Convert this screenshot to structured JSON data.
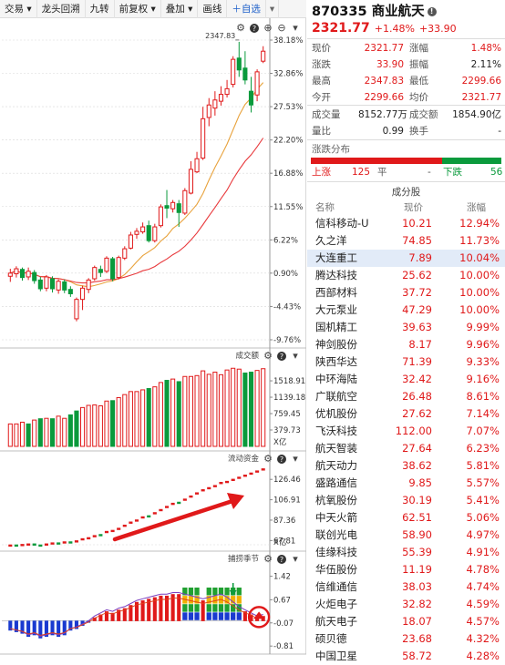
{
  "toolbar": {
    "items": [
      "交易",
      "龙头回溯",
      "九转",
      "前复权",
      "叠加",
      "画线"
    ],
    "add_label": "自选"
  },
  "stock": {
    "code": "870335",
    "name": "商业航天",
    "price": "2321.77",
    "change_pct": "+1.48%",
    "change": "+33.90"
  },
  "quote": {
    "rows": [
      {
        "l1": "现价",
        "v1": "2321.77",
        "c1": "red",
        "l2": "涨幅",
        "v2": "1.48%",
        "c2": "red"
      },
      {
        "l1": "涨跌",
        "v1": "33.90",
        "c1": "red",
        "l2": "振幅",
        "v2": "2.11%",
        "c2": "dark"
      },
      {
        "l1": "最高",
        "v1": "2347.83",
        "c1": "red",
        "l2": "最低",
        "v2": "2299.66",
        "c2": "red"
      },
      {
        "l1": "今开",
        "v1": "2299.66",
        "c1": "red",
        "l2": "均价",
        "v2": "2321.77",
        "c2": "red"
      }
    ],
    "rows2": [
      {
        "l1": "成交量",
        "v1": "8152.77万",
        "c1": "dark",
        "l2": "成交额",
        "v2": "1854.90亿",
        "c2": "dark"
      },
      {
        "l1": "量比",
        "v1": "0.99",
        "c1": "dark",
        "l2": "换手",
        "v2": "-",
        "c2": "dark"
      }
    ]
  },
  "distribution": {
    "title": "涨跌分布",
    "up_label": "上涨",
    "up": "125",
    "flat_label": "平",
    "flat": "-",
    "down_label": "下跌",
    "down": "56",
    "up_ratio": 0.69
  },
  "constituents": {
    "title": "成分股",
    "headers": {
      "name": "名称",
      "price": "现价",
      "pct": "涨幅"
    },
    "rows": [
      {
        "name": "信科移动-U",
        "price": "10.21",
        "pct": "12.94%"
      },
      {
        "name": "久之洋",
        "price": "74.85",
        "pct": "11.73%"
      },
      {
        "name": "大连重工",
        "price": "7.89",
        "pct": "10.04%",
        "selected": true
      },
      {
        "name": "腾达科技",
        "price": "25.62",
        "pct": "10.00%"
      },
      {
        "name": "西部材料",
        "price": "37.72",
        "pct": "10.00%"
      },
      {
        "name": "大元泵业",
        "price": "47.29",
        "pct": "10.00%"
      },
      {
        "name": "国机精工",
        "price": "39.63",
        "pct": "9.99%"
      },
      {
        "name": "神剑股份",
        "price": "8.17",
        "pct": "9.96%"
      },
      {
        "name": "陕西华达",
        "price": "71.39",
        "pct": "9.33%"
      },
      {
        "name": "中环海陆",
        "price": "32.42",
        "pct": "9.16%"
      },
      {
        "name": "广联航空",
        "price": "26.48",
        "pct": "8.61%"
      },
      {
        "name": "优机股份",
        "price": "27.62",
        "pct": "7.14%"
      },
      {
        "name": "飞沃科技",
        "price": "112.00",
        "pct": "7.07%"
      },
      {
        "name": "航天智装",
        "price": "27.64",
        "pct": "6.23%"
      },
      {
        "name": "航天动力",
        "price": "38.62",
        "pct": "5.81%"
      },
      {
        "name": "盛路通信",
        "price": "9.85",
        "pct": "5.57%"
      },
      {
        "name": "杭氧股份",
        "price": "30.19",
        "pct": "5.41%"
      },
      {
        "name": "中天火箭",
        "price": "62.51",
        "pct": "5.06%"
      },
      {
        "name": "联创光电",
        "price": "58.90",
        "pct": "4.97%"
      },
      {
        "name": "佳缘科技",
        "price": "55.39",
        "pct": "4.91%"
      },
      {
        "name": "华伍股份",
        "price": "11.19",
        "pct": "4.78%"
      },
      {
        "name": "信维通信",
        "price": "38.03",
        "pct": "4.74%"
      },
      {
        "name": "火炬电子",
        "price": "32.82",
        "pct": "4.59%"
      },
      {
        "name": "航天电子",
        "price": "18.07",
        "pct": "4.57%"
      },
      {
        "name": "硕贝德",
        "price": "23.68",
        "pct": "4.32%"
      },
      {
        "name": "中国卫星",
        "price": "58.72",
        "pct": "4.28%"
      }
    ]
  },
  "kline": {
    "axis_labels": [
      "38.18%",
      "32.86%",
      "27.53%",
      "22.20%",
      "16.88%",
      "11.55%",
      "6.22%",
      "0.90%",
      "-4.43%",
      "-9.76%"
    ],
    "high_label": "2347.83",
    "candles": [
      {
        "o": 0.4,
        "c": 0.9,
        "h": 1.6,
        "l": -0.5
      },
      {
        "o": 0.8,
        "c": 1.6,
        "h": 2.0,
        "l": 0.2
      },
      {
        "o": 1.5,
        "c": 0.2,
        "h": 1.8,
        "l": -0.3
      },
      {
        "o": 0.3,
        "c": 1.2,
        "h": 1.8,
        "l": -0.2
      },
      {
        "o": 1.0,
        "c": -0.3,
        "h": 1.4,
        "l": -0.8
      },
      {
        "o": -0.2,
        "c": -1.6,
        "h": 0.3,
        "l": -2.0
      },
      {
        "o": -1.5,
        "c": 0.3,
        "h": 0.6,
        "l": -2.0
      },
      {
        "o": 0.0,
        "c": -1.6,
        "h": 0.4,
        "l": -2.2
      },
      {
        "o": -1.8,
        "c": -0.4,
        "h": -0.1,
        "l": -2.4
      },
      {
        "o": -0.5,
        "c": -1.8,
        "h": -0.1,
        "l": -2.3
      },
      {
        "o": -1.7,
        "c": -2.4,
        "h": -1.2,
        "l": -2.9
      },
      {
        "o": -6.4,
        "c": -3.3,
        "h": -3.0,
        "l": -6.8
      },
      {
        "o": -3.3,
        "c": -1.5,
        "h": -1.1,
        "l": -5.0
      },
      {
        "o": -1.7,
        "c": -0.2,
        "h": 0.1,
        "l": -2.3
      },
      {
        "o": 0.0,
        "c": 1.8,
        "h": 2.1,
        "l": -0.3
      },
      {
        "o": 1.5,
        "c": 1.0,
        "h": 2.1,
        "l": 0.3
      },
      {
        "o": 1.2,
        "c": 3.3,
        "h": 3.6,
        "l": 0.9
      },
      {
        "o": 3.2,
        "c": 0.0,
        "h": 3.5,
        "l": -0.4
      },
      {
        "o": 0.2,
        "c": 3.4,
        "h": 3.7,
        "l": -0.1
      },
      {
        "o": 3.3,
        "c": 4.8,
        "h": 5.2,
        "l": 3.0
      },
      {
        "o": 4.9,
        "c": 7.0,
        "h": 7.5,
        "l": 4.7
      },
      {
        "o": 7.1,
        "c": 7.6,
        "h": 8.1,
        "l": 6.4
      },
      {
        "o": 7.5,
        "c": 8.3,
        "h": 9.0,
        "l": 7.2
      },
      {
        "o": 8.5,
        "c": 6.1,
        "h": 9.3,
        "l": 5.8
      },
      {
        "o": 6.1,
        "c": 8.3,
        "h": 8.8,
        "l": 5.8
      },
      {
        "o": 8.5,
        "c": 11.5,
        "h": 11.9,
        "l": 8.2
      },
      {
        "o": 11.7,
        "c": 11.3,
        "h": 14.2,
        "l": 9.7
      },
      {
        "o": 11.2,
        "c": 12.2,
        "h": 12.6,
        "l": 10.6
      },
      {
        "o": 12.0,
        "c": 10.6,
        "h": 12.6,
        "l": 8.3
      },
      {
        "o": 10.5,
        "c": 14.1,
        "h": 14.5,
        "l": 10.2
      },
      {
        "o": 13.7,
        "c": 17.5,
        "h": 18.8,
        "l": 13.5
      },
      {
        "o": 17.1,
        "c": 19.2,
        "h": 20.3,
        "l": 16.9
      },
      {
        "o": 19.3,
        "c": 25.6,
        "h": 27.5,
        "l": 19.0
      },
      {
        "o": 25.8,
        "c": 27.8,
        "h": 28.9,
        "l": 24.4
      },
      {
        "o": 27.3,
        "c": 28.6,
        "h": 30.0,
        "l": 26.1
      },
      {
        "o": 28.4,
        "c": 29.5,
        "h": 30.8,
        "l": 27.7
      },
      {
        "o": 29.5,
        "c": 30.4,
        "h": 31.8,
        "l": 29.0
      },
      {
        "o": 31.1,
        "c": 35.1,
        "h": 35.6,
        "l": 30.6
      },
      {
        "o": 35.3,
        "c": 33.4,
        "h": 37.9,
        "l": 32.3
      },
      {
        "o": 33.7,
        "c": 31.8,
        "h": 36.4,
        "l": 31.1
      },
      {
        "o": 30.0,
        "c": 27.8,
        "h": 32.3,
        "l": 26.6
      },
      {
        "o": 29.4,
        "c": 33.1,
        "h": 33.5,
        "l": 28.4
      },
      {
        "o": 34.8,
        "c": 36.4,
        "h": 37.2,
        "l": 34.5
      }
    ]
  },
  "volume": {
    "title": "成交额",
    "axis_labels": [
      "1518.91",
      "1139.18",
      "759.45",
      "379.73"
    ],
    "unit": "X亿",
    "max": 1900,
    "bars": [
      {
        "v": 520,
        "up": true
      },
      {
        "v": 520,
        "up": true
      },
      {
        "v": 560,
        "up": true
      },
      {
        "v": 520,
        "up": false
      },
      {
        "v": 610,
        "up": true
      },
      {
        "v": 640,
        "up": false
      },
      {
        "v": 650,
        "up": true
      },
      {
        "v": 640,
        "up": false
      },
      {
        "v": 700,
        "up": true
      },
      {
        "v": 650,
        "up": true
      },
      {
        "v": 730,
        "up": false
      },
      {
        "v": 820,
        "up": false
      },
      {
        "v": 900,
        "up": true
      },
      {
        "v": 950,
        "up": true
      },
      {
        "v": 960,
        "up": true
      },
      {
        "v": 940,
        "up": true
      },
      {
        "v": 1050,
        "up": true
      },
      {
        "v": 1060,
        "up": false
      },
      {
        "v": 1130,
        "up": true
      },
      {
        "v": 1200,
        "up": true
      },
      {
        "v": 1270,
        "up": true
      },
      {
        "v": 1270,
        "up": true
      },
      {
        "v": 1310,
        "up": true
      },
      {
        "v": 1340,
        "up": false
      },
      {
        "v": 1380,
        "up": true
      },
      {
        "v": 1480,
        "up": true
      },
      {
        "v": 1530,
        "up": false
      },
      {
        "v": 1560,
        "up": true
      },
      {
        "v": 1500,
        "up": false
      },
      {
        "v": 1620,
        "up": true
      },
      {
        "v": 1620,
        "up": true
      },
      {
        "v": 1640,
        "up": true
      },
      {
        "v": 1750,
        "up": true
      },
      {
        "v": 1670,
        "up": true
      },
      {
        "v": 1720,
        "up": true
      },
      {
        "v": 1660,
        "up": true
      },
      {
        "v": 1770,
        "up": true
      },
      {
        "v": 1810,
        "up": true
      },
      {
        "v": 1790,
        "up": true
      },
      {
        "v": 1700,
        "up": false
      },
      {
        "v": 1720,
        "up": false
      },
      {
        "v": 1760,
        "up": true
      },
      {
        "v": 1800,
        "up": true
      }
    ]
  },
  "flow": {
    "title": "流动资金",
    "axis_labels": [
      "126.46",
      "106.91",
      "87.36",
      "67.81"
    ],
    "unit": "X亿",
    "min": 62,
    "max": 138,
    "bars": [
      {
        "v": 64,
        "up": true
      },
      {
        "v": 64,
        "up": false
      },
      {
        "v": 64.5,
        "up": true
      },
      {
        "v": 65,
        "up": true
      },
      {
        "v": 65,
        "up": false
      },
      {
        "v": 64,
        "up": false
      },
      {
        "v": 65,
        "up": true
      },
      {
        "v": 66,
        "up": true
      },
      {
        "v": 66,
        "up": false
      },
      {
        "v": 67,
        "up": true
      },
      {
        "v": 67,
        "up": false
      },
      {
        "v": 68,
        "up": true
      },
      {
        "v": 70,
        "up": true
      },
      {
        "v": 71,
        "up": true
      },
      {
        "v": 73,
        "up": true
      },
      {
        "v": 74,
        "up": false
      },
      {
        "v": 77,
        "up": true
      },
      {
        "v": 78,
        "up": true
      },
      {
        "v": 80,
        "up": true
      },
      {
        "v": 83,
        "up": true
      },
      {
        "v": 86,
        "up": true
      },
      {
        "v": 88,
        "up": true
      },
      {
        "v": 91,
        "up": true
      },
      {
        "v": 92,
        "up": false
      },
      {
        "v": 95,
        "up": true
      },
      {
        "v": 98,
        "up": true
      },
      {
        "v": 101,
        "up": true
      },
      {
        "v": 104,
        "up": true
      },
      {
        "v": 105,
        "up": false
      },
      {
        "v": 108,
        "up": true
      },
      {
        "v": 111,
        "up": true
      },
      {
        "v": 114,
        "up": true
      },
      {
        "v": 117,
        "up": true
      },
      {
        "v": 119,
        "up": true
      },
      {
        "v": 121,
        "up": true
      },
      {
        "v": 124,
        "up": true
      },
      {
        "v": 125,
        "up": true
      },
      {
        "v": 127,
        "up": true
      },
      {
        "v": 129,
        "up": true
      },
      {
        "v": 131,
        "up": true
      },
      {
        "v": 133,
        "up": true
      },
      {
        "v": 135,
        "up": true
      },
      {
        "v": 137,
        "up": true
      }
    ]
  },
  "season": {
    "title": "捕捞季节",
    "axis_labels": [
      "1.42",
      "0.67",
      "-0.07",
      "-0.81"
    ],
    "min": -0.95,
    "max": 1.7,
    "bars": [
      -0.3,
      -0.35,
      -0.4,
      -0.5,
      -0.45,
      -0.55,
      -0.5,
      -0.45,
      -0.5,
      -0.45,
      -0.3,
      -0.25,
      -0.15,
      -0.05,
      0.1,
      0.2,
      0.3,
      0.25,
      0.35,
      0.4,
      0.5,
      0.6,
      0.65,
      0.7,
      0.75,
      0.8,
      0.8,
      0.85,
      0.85,
      0.8,
      0.75,
      0.7,
      0.65,
      0.7,
      0.75,
      0.8,
      0.7,
      0.55,
      0.4,
      0.3,
      0.2,
      0.1,
      0.15
    ],
    "signal_cols": [
      29,
      30,
      31,
      33,
      34,
      35,
      36,
      37,
      38
    ]
  },
  "colors": {
    "up": "#e0191a",
    "down": "#0a9a3c",
    "ma1": "#e8a23c",
    "ma2": "#e8393c",
    "axis": "#555555",
    "grid": "#d8d8d8",
    "arrow": "#e0191a"
  },
  "icons": [
    "chevron-down-icon",
    "plus-circle-icon",
    "minus-circle-icon",
    "gear-icon",
    "info-icon",
    "help-icon",
    "dropdown-icon"
  ]
}
